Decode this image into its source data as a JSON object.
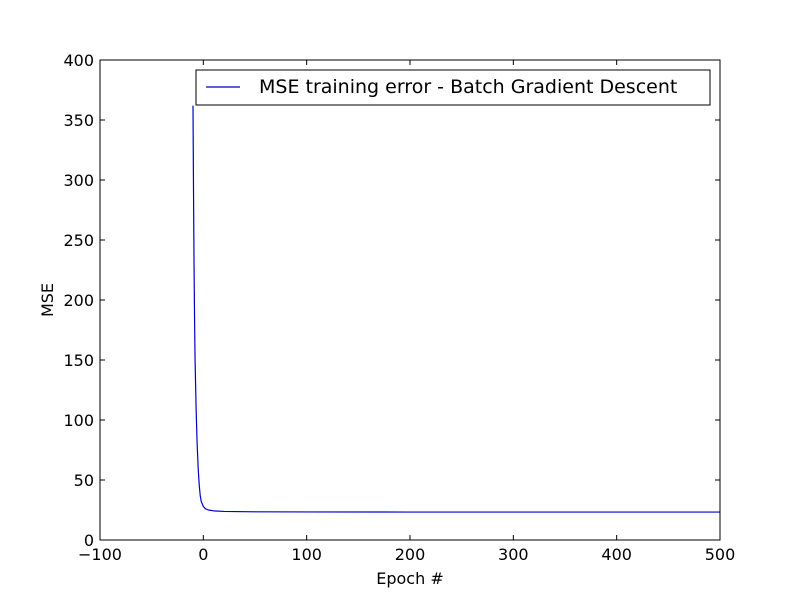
{
  "chart_data": {
    "type": "line",
    "title": "",
    "xlabel": "Epoch #",
    "ylabel": "MSE",
    "xlim": [
      -100,
      500
    ],
    "ylim": [
      0,
      400
    ],
    "xticks": [
      -100,
      0,
      100,
      200,
      300,
      400,
      500
    ],
    "yticks": [
      0,
      50,
      100,
      150,
      200,
      250,
      300,
      350,
      400
    ],
    "xtick_labels": [
      "−100",
      "0",
      "100",
      "200",
      "300",
      "400",
      "500"
    ],
    "ytick_labels": [
      "0",
      "50",
      "100",
      "150",
      "200",
      "250",
      "300",
      "350",
      "400"
    ],
    "grid": false,
    "legend_position": "top-right",
    "series": [
      {
        "name": "MSE training error - Batch Gradient Descent",
        "color": "#0000cc",
        "x": [
          -10,
          -9.5,
          -9,
          -8.5,
          -8,
          -7,
          -6,
          -5,
          -4,
          -3,
          -2,
          0,
          2,
          5,
          10,
          20,
          50,
          100,
          200,
          300,
          400,
          500
        ],
        "y": [
          362,
          290,
          230,
          185,
          150,
          110,
          80,
          60,
          46,
          37,
          32,
          28,
          26,
          25,
          24.3,
          23.8,
          23.5,
          23.4,
          23.3,
          23.3,
          23.3,
          23.3
        ]
      }
    ]
  }
}
